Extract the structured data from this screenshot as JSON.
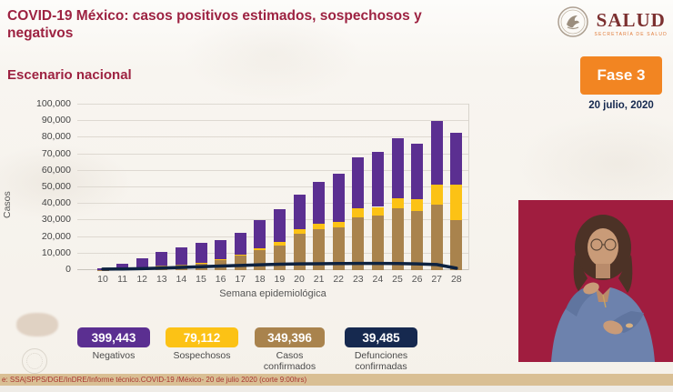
{
  "header": {
    "title": "COVID-19 México: casos positivos estimados, sospechosos y negativos",
    "subtitle": "Escenario nacional",
    "logo": {
      "name": "SALUD",
      "sub": "SECRETARÍA DE SALUD"
    },
    "phase_badge": "Fase 3",
    "date": "20 julio, 2020"
  },
  "colors": {
    "maroon": "#9d2241",
    "orange": "#f28522",
    "navy": "#16294f",
    "purple": "#5b2f91",
    "yellow": "#fcc215",
    "brown": "#a9834d",
    "line_navy": "#0d2240",
    "source_bar_bg": "#d9bf94",
    "interpreter_bg": "#a01d3f"
  },
  "chart_data": {
    "type": "bar",
    "subtype": "stacked-bar-with-line",
    "title": "Escenario nacional",
    "xlabel": "Semana epidemiológica",
    "ylabel": "Casos",
    "ylim": [
      0,
      100000
    ],
    "yticks": [
      "0",
      "10,000",
      "20,000",
      "30,000",
      "40,000",
      "50,000",
      "60,000",
      "70,000",
      "80,000",
      "90,000",
      "100,000"
    ],
    "grid": true,
    "categories": [
      10,
      11,
      12,
      13,
      14,
      15,
      16,
      17,
      18,
      19,
      20,
      21,
      22,
      23,
      24,
      25,
      26,
      27,
      28
    ],
    "series": [
      {
        "name": "Casos confirmados",
        "color_key": "brown",
        "values": [
          100,
          700,
          1500,
          2500,
          3200,
          4200,
          6000,
          8700,
          12000,
          14700,
          22000,
          24700,
          25800,
          32100,
          33000,
          37600,
          35800,
          39400,
          30300
        ]
      },
      {
        "name": "Sospechosos",
        "color_key": "yellow",
        "values": [
          0,
          0,
          0,
          0,
          0,
          400,
          500,
          600,
          1000,
          2500,
          3000,
          3200,
          3200,
          5000,
          5200,
          6000,
          7000,
          12500,
          21500
        ]
      },
      {
        "name": "Negativos",
        "color_key": "purple",
        "values": [
          900,
          3100,
          5800,
          8500,
          10600,
          11900,
          11500,
          13100,
          17200,
          19400,
          20700,
          25600,
          29200,
          30900,
          33500,
          35900,
          33400,
          38100,
          31300
        ]
      }
    ],
    "line_series": {
      "name": "Defunciones confirmadas",
      "color_key": "line_navy",
      "values": [
        50,
        150,
        350,
        700,
        1100,
        1500,
        1900,
        2300,
        2700,
        3000,
        3200,
        3300,
        3400,
        3500,
        3500,
        3400,
        3200,
        2800,
        600
      ]
    },
    "legend_position": "bottom"
  },
  "legend": {
    "items": [
      {
        "value": "399,443",
        "label": "Negativos",
        "color_key": "purple"
      },
      {
        "value": "79,112",
        "label": "Sospechosos",
        "color_key": "yellow"
      },
      {
        "value": "349,396",
        "label": "Casos confirmados",
        "color_key": "brown"
      },
      {
        "value": "39,485",
        "label": "Defunciones confirmadas",
        "color_key": "navy"
      }
    ]
  },
  "source": {
    "text": "e: SSA|SPPS/DGE/InDRE/Informe técnico.COVID-19 /México- 20 de julio 2020 (corte 9:00hrs)"
  }
}
